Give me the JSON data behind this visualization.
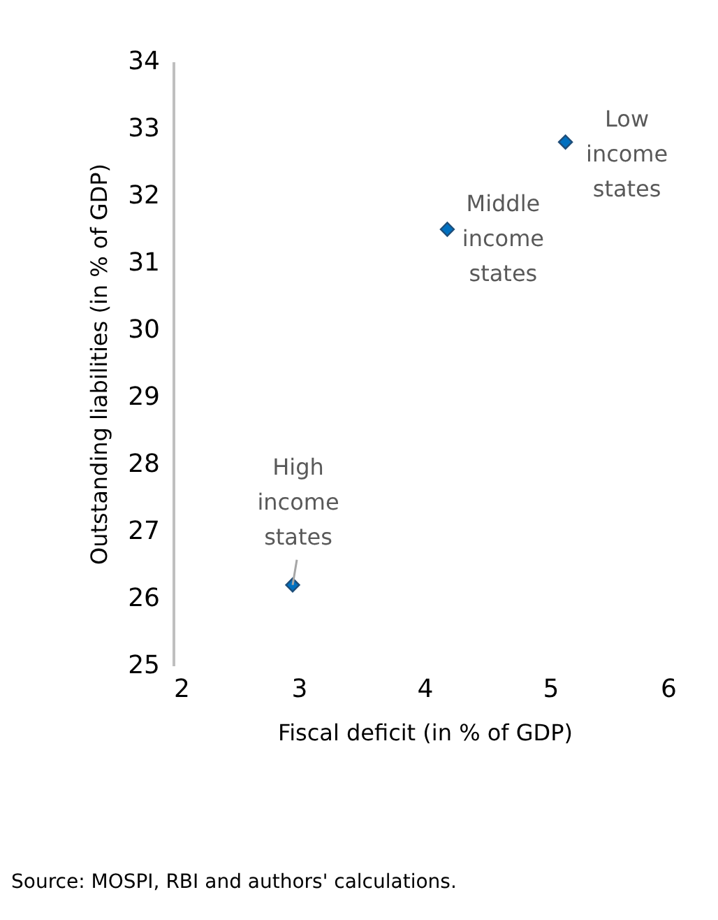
{
  "chart_data": {
    "type": "scatter",
    "xlabel": "Fiscal deficit (in % of GDP)",
    "ylabel": "Outstanding liabilities (in % of GDP)",
    "x": [
      5.12,
      4.18,
      2.95
    ],
    "series": [
      {
        "color": "#0070c0",
        "values": [
          32.8,
          31.5,
          26.2
        ]
      }
    ],
    "marker": "diamond",
    "grid": false,
    "xlim": [
      2,
      6
    ],
    "xticks": [
      2,
      3,
      4,
      5,
      6
    ],
    "ylim": [
      25,
      34
    ],
    "yticks": [
      25,
      26,
      27,
      28,
      29,
      30,
      31,
      32,
      33,
      34
    ],
    "annotations": [
      {
        "text": "Low income states",
        "x": 5.12,
        "y": 32.8
      },
      {
        "text": "Middle income states",
        "x": 4.18,
        "y": 31.5
      },
      {
        "text": "High income states",
        "x": 2.95,
        "y": 26.2
      },
      "Source: MOSPI, RBI and authors' calculations."
    ]
  }
}
